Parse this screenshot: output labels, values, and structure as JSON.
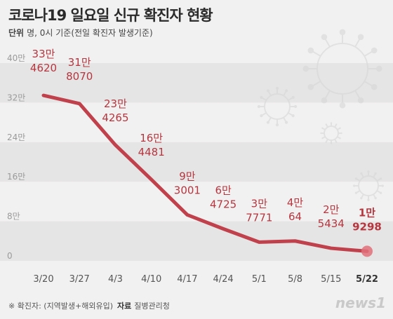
{
  "title": "코로나19 일요일 신규 확진자 현황",
  "unit_label": "단위",
  "unit_text": "명, 0시 기준(전일 확진자 발생기준)",
  "footnote": "※ 확진자: (지역발생+해외유입)",
  "source_label": "자료",
  "source": "질병관리청",
  "logo": "news1",
  "colors": {
    "line": "#c0414b",
    "label": "#b5363f",
    "highlight_dot": "#e0707a",
    "axis_text": "#9a9a9a",
    "band": "#e6e5e5"
  },
  "chart_data": {
    "type": "line",
    "title": "코로나19 일요일 신규 확진자 현황",
    "x": [
      "3/20",
      "3/27",
      "4/3",
      "4/10",
      "4/17",
      "4/24",
      "5/1",
      "5/8",
      "5/15",
      "5/22"
    ],
    "values": [
      334620,
      318070,
      234265,
      164481,
      93001,
      64725,
      37771,
      40064,
      25434,
      19298
    ],
    "value_labels": [
      [
        "33만",
        "4620"
      ],
      [
        "31만",
        "8070"
      ],
      [
        "23만",
        "4265"
      ],
      [
        "16만",
        "4481"
      ],
      [
        "9만",
        "3001"
      ],
      [
        "6만",
        "4725"
      ],
      [
        "3만",
        "7771"
      ],
      [
        "4만",
        "64"
      ],
      [
        "2만",
        "5434"
      ],
      [
        "1만",
        "9298"
      ]
    ],
    "y_ticks": [
      "40만",
      "32만",
      "24만",
      "16만",
      "8만",
      "0"
    ],
    "y_tick_values": [
      400000,
      320000,
      240000,
      160000,
      80000,
      0
    ],
    "ylim": [
      0,
      400000
    ],
    "highlight_last": true
  }
}
